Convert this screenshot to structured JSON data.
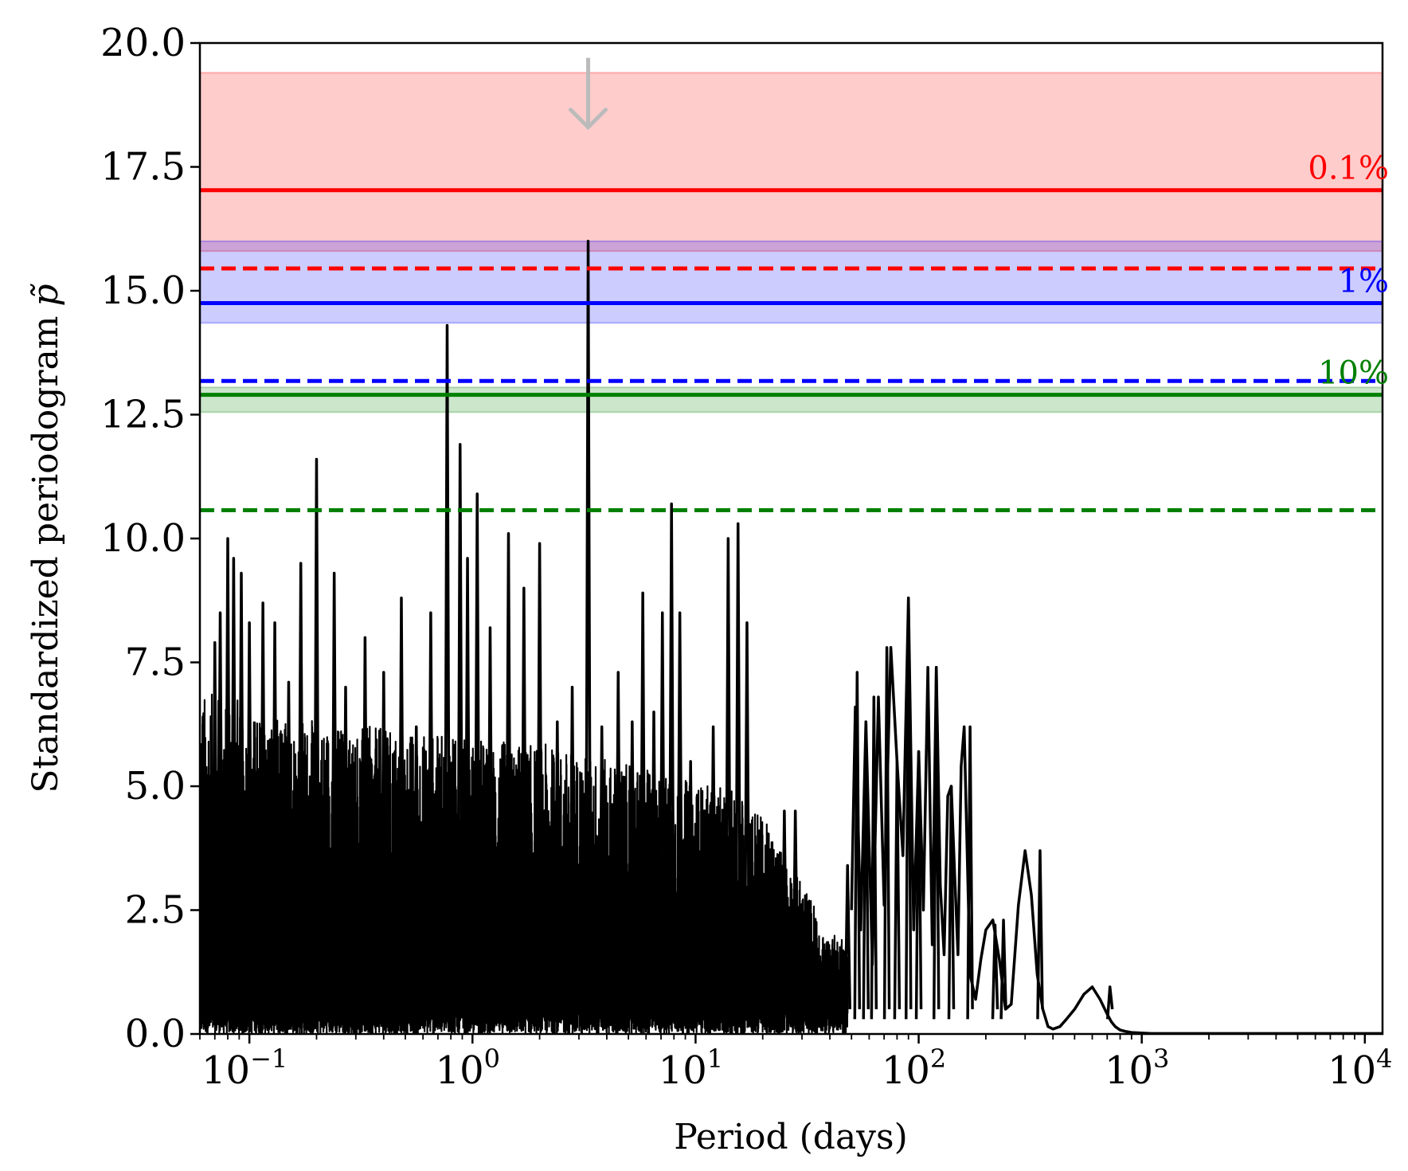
{
  "chart_data": {
    "type": "line",
    "title": "",
    "xlabel": "Period (days)",
    "ylabel": "Standardized periodogram",
    "ylabel_symbol": "p̃",
    "xscale": "log",
    "xlim": [
      0.06,
      12000
    ],
    "ylim": [
      0,
      20
    ],
    "grid": false,
    "x_ticks": [
      {
        "value": 0.1,
        "base": "10",
        "exp": "−1"
      },
      {
        "value": 1,
        "base": "10",
        "exp": "0"
      },
      {
        "value": 10,
        "base": "10",
        "exp": "1"
      },
      {
        "value": 100,
        "base": "10",
        "exp": "2"
      },
      {
        "value": 1000,
        "base": "10",
        "exp": "3"
      },
      {
        "value": 10000,
        "base": "10",
        "exp": "4"
      }
    ],
    "y_ticks": [
      "0.0",
      "2.5",
      "5.0",
      "7.5",
      "10.0",
      "12.5",
      "15.0",
      "17.5",
      "20.0"
    ],
    "bands": [
      {
        "ymin": 15.8,
        "ymax": 19.4,
        "color": "#ff0000",
        "alpha": 0.2
      },
      {
        "ymin": 14.35,
        "ymax": 16.0,
        "color": "#0000ff",
        "alpha": 0.2
      },
      {
        "ymin": 12.55,
        "ymax": 13.05,
        "color": "#008000",
        "alpha": 0.2
      }
    ],
    "thresholds": [
      {
        "label": "0.1%",
        "y": 17.03,
        "color": "#ff0000",
        "style": "solid"
      },
      {
        "label": "",
        "y": 15.45,
        "color": "#ff0000",
        "style": "dashed"
      },
      {
        "label": "1%",
        "y": 14.75,
        "color": "#0000ff",
        "style": "solid"
      },
      {
        "label": "",
        "y": 13.18,
        "color": "#0000ff",
        "style": "dashed"
      },
      {
        "label": "10%",
        "y": 12.9,
        "color": "#008000",
        "style": "solid"
      },
      {
        "label": "",
        "y": 10.57,
        "color": "#008000",
        "style": "dashed"
      }
    ],
    "arrow": {
      "x": 3.3,
      "y_top": 19.7,
      "y_tip": 18.3,
      "color": "#bbbbbb"
    },
    "peaks": [
      [
        0.062,
        6.4
      ],
      [
        0.07,
        7.9
      ],
      [
        0.074,
        8.5
      ],
      [
        0.08,
        10.0
      ],
      [
        0.085,
        9.6
      ],
      [
        0.092,
        9.3
      ],
      [
        0.1,
        8.3
      ],
      [
        0.115,
        8.7
      ],
      [
        0.13,
        8.3
      ],
      [
        0.15,
        7.1
      ],
      [
        0.17,
        9.5
      ],
      [
        0.2,
        11.6
      ],
      [
        0.24,
        9.3
      ],
      [
        0.27,
        7.0
      ],
      [
        0.33,
        8.0
      ],
      [
        0.4,
        7.3
      ],
      [
        0.48,
        8.8
      ],
      [
        0.56,
        6.2
      ],
      [
        0.65,
        8.5
      ],
      [
        0.77,
        14.3
      ],
      [
        0.88,
        11.9
      ],
      [
        0.95,
        9.6
      ],
      [
        1.05,
        10.9
      ],
      [
        1.2,
        8.2
      ],
      [
        1.45,
        10.1
      ],
      [
        1.7,
        9.0
      ],
      [
        2.0,
        9.9
      ],
      [
        2.4,
        6.3
      ],
      [
        2.8,
        7.0
      ],
      [
        3.3,
        16.0
      ],
      [
        3.8,
        6.2
      ],
      [
        4.5,
        7.3
      ],
      [
        5.2,
        6.3
      ],
      [
        5.8,
        8.9
      ],
      [
        6.5,
        6.5
      ],
      [
        7.1,
        8.5
      ],
      [
        7.8,
        10.7
      ],
      [
        8.5,
        8.5
      ],
      [
        9.5,
        5.5
      ],
      [
        12,
        6.2
      ],
      [
        14,
        10.0
      ],
      [
        15.5,
        10.3
      ],
      [
        17,
        8.3
      ],
      [
        25,
        4.5
      ],
      [
        28,
        4.5
      ],
      [
        33,
        1.7
      ],
      [
        40,
        0.6
      ],
      [
        48,
        3.4
      ],
      [
        53,
        7.3
      ],
      [
        58,
        6.3
      ],
      [
        63,
        6.8
      ],
      [
        72,
        7.8
      ],
      [
        80,
        5.5
      ],
      [
        90,
        8.8
      ],
      [
        100,
        5.7
      ],
      [
        120,
        7.4
      ],
      [
        140,
        5.0
      ],
      [
        170,
        6.2
      ],
      [
        220,
        2.2
      ],
      [
        240,
        2.3
      ],
      [
        350,
        3.7
      ],
      [
        720,
        0.95
      ]
    ],
    "series": [
      {
        "color": "#000000",
        "x": [
          50,
          52,
          55,
          58,
          62,
          66,
          70,
          75,
          80,
          85,
          90,
          95,
          100,
          105,
          110,
          115,
          120,
          125,
          130,
          135,
          140,
          145,
          150,
          155,
          160,
          170,
          180,
          190,
          200,
          215,
          230,
          245,
          260,
          280,
          300,
          320,
          340,
          360,
          380,
          400,
          430,
          460,
          500,
          550,
          600,
          650,
          700,
          730,
          760,
          800,
          850,
          900,
          1000,
          1100,
          1200,
          1500,
          2000,
          3000,
          5000,
          8000,
          12000
        ],
        "y": [
          2.5,
          6.6,
          2.1,
          6.3,
          1.4,
          6.8,
          2.6,
          7.8,
          5.5,
          3.6,
          8.8,
          2.1,
          5.7,
          2.5,
          7.4,
          1.8,
          7.4,
          3.0,
          1.6,
          4.8,
          5.0,
          3.2,
          1.6,
          5.4,
          6.2,
          1.2,
          0.7,
          1.5,
          2.1,
          2.3,
          1.5,
          0.5,
          0.6,
          2.6,
          3.7,
          2.8,
          1.2,
          0.5,
          0.15,
          0.1,
          0.15,
          0.3,
          0.5,
          0.8,
          0.95,
          0.7,
          0.4,
          0.25,
          0.15,
          0.08,
          0.05,
          0.03,
          0.02,
          0.01,
          0.01,
          0.01,
          0.01,
          0.01,
          0.01,
          0.01,
          0.01
        ]
      }
    ]
  }
}
